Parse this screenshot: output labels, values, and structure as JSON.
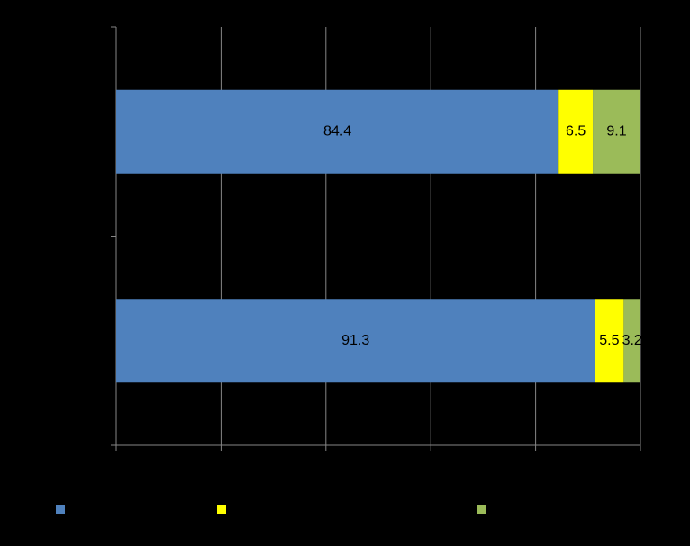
{
  "chart_data": {
    "type": "stacked-barh",
    "categories": [
      null,
      null
    ],
    "series": [
      {
        "color": "#4f81bd",
        "values": [
          84.4,
          91.3
        ]
      },
      {
        "color": "#ffff00",
        "values": [
          6.5,
          5.5
        ]
      },
      {
        "color": "#9bbb59",
        "values": [
          9.1,
          3.2
        ]
      }
    ],
    "xlim": [
      0,
      100
    ],
    "xticks": [
      0,
      20,
      40,
      60,
      80,
      100
    ],
    "grid": true
  }
}
